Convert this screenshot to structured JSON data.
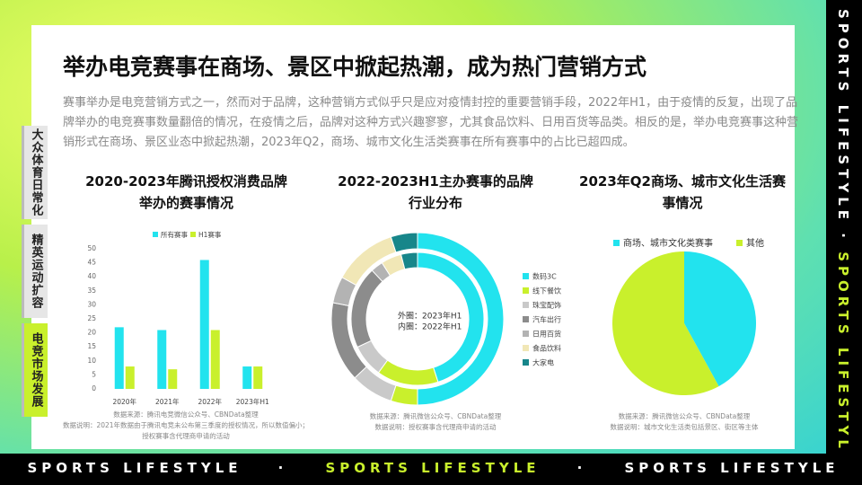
{
  "header": {
    "title": "举办电竞赛事在商场、景区中掀起热潮，成为热门营销方式"
  },
  "paragraph": "赛事举办是电竞营销方式之一，然而对于品牌，这种营销方式似乎只是应对疫情封控的重要营销手段，2022年H1，由于疫情的反复，出现了品牌举办的电竞赛事数量翻倍的情况，在疫情之后，品牌对这种方式兴趣寥寥，尤其食品饮料、日用百货等品类。相反的是，举办电竞赛事这种营销形式在商场、景区业态中掀起热潮，2023年Q2，商场、城市文化生活类赛事在所有赛事中的占比已超四成。",
  "side_tabs": [
    "大众体育日常化",
    "精英运动扩容",
    "电竞市场发展"
  ],
  "footer": [
    "SPORTS LIFESTYLE",
    "·",
    "SPORTS LIFESTYLE",
    "·",
    "SPORTS LIFESTYLE"
  ],
  "side_strip": [
    "SPORTS LIFESTYLE",
    "·",
    "SPORTS LIFESTYLE"
  ],
  "chart_data": [
    {
      "type": "bar",
      "title": "2020-2023年腾讯授权消费品牌举办的赛事情况",
      "categories": [
        "2020年",
        "2021年",
        "2022年",
        "2023年H1"
      ],
      "series": [
        {
          "name": "所有赛事",
          "color": "#22e3ee",
          "values": [
            22,
            21,
            46,
            8
          ]
        },
        {
          "name": "H1赛事",
          "color": "#c9f02c",
          "values": [
            8,
            7,
            21,
            8
          ]
        }
      ],
      "ylim": [
        0,
        50
      ],
      "yticks": [
        0,
        5,
        10,
        15,
        20,
        25,
        30,
        35,
        40,
        45,
        50
      ],
      "grid": false,
      "notes": [
        "数据来源：腾讯电竞微信公众号、CBNData整理",
        "数据说明：2021年数据由于腾讯电竞未公布第三季度的授权情况，所以数值偏小；",
        "授权赛事含代理商申请的活动"
      ]
    },
    {
      "type": "donut",
      "title": "2022-2023H1主办赛事的品牌行业分布",
      "categories": [
        "数码3C",
        "线下餐饮",
        "珠宝配饰",
        "汽车出行",
        "日用百货",
        "食品饮料",
        "大家电"
      ],
      "colors": [
        "#22e3ee",
        "#c9f02c",
        "#c9c9c9",
        "#8c8c8c",
        "#b3b3b3",
        "#f1e7b6",
        "#17868a"
      ],
      "series": [
        {
          "name": "外圈：2023年H1",
          "values": [
            50,
            5,
            8,
            15,
            5,
            12,
            5
          ]
        },
        {
          "name": "内圈：2022年H1",
          "values": [
            45,
            15,
            8,
            20,
            3,
            5,
            4
          ]
        }
      ],
      "notes": [
        "数据来源：腾讯微信公众号、CBNData整理",
        "数据说明：授权赛事含代理商申请的活动"
      ]
    },
    {
      "type": "pie",
      "title": "2023年Q2商场、城市文化生活赛事情况",
      "categories": [
        "商场、城市文化类赛事",
        "其他"
      ],
      "colors": [
        "#22e3ee",
        "#c9f02c"
      ],
      "values": [
        42,
        58
      ],
      "notes": [
        "数据来源：腾讯微信公众号、CBNData整理",
        "数据说明：城市文化生活类包括景区、街区等主体"
      ]
    }
  ]
}
